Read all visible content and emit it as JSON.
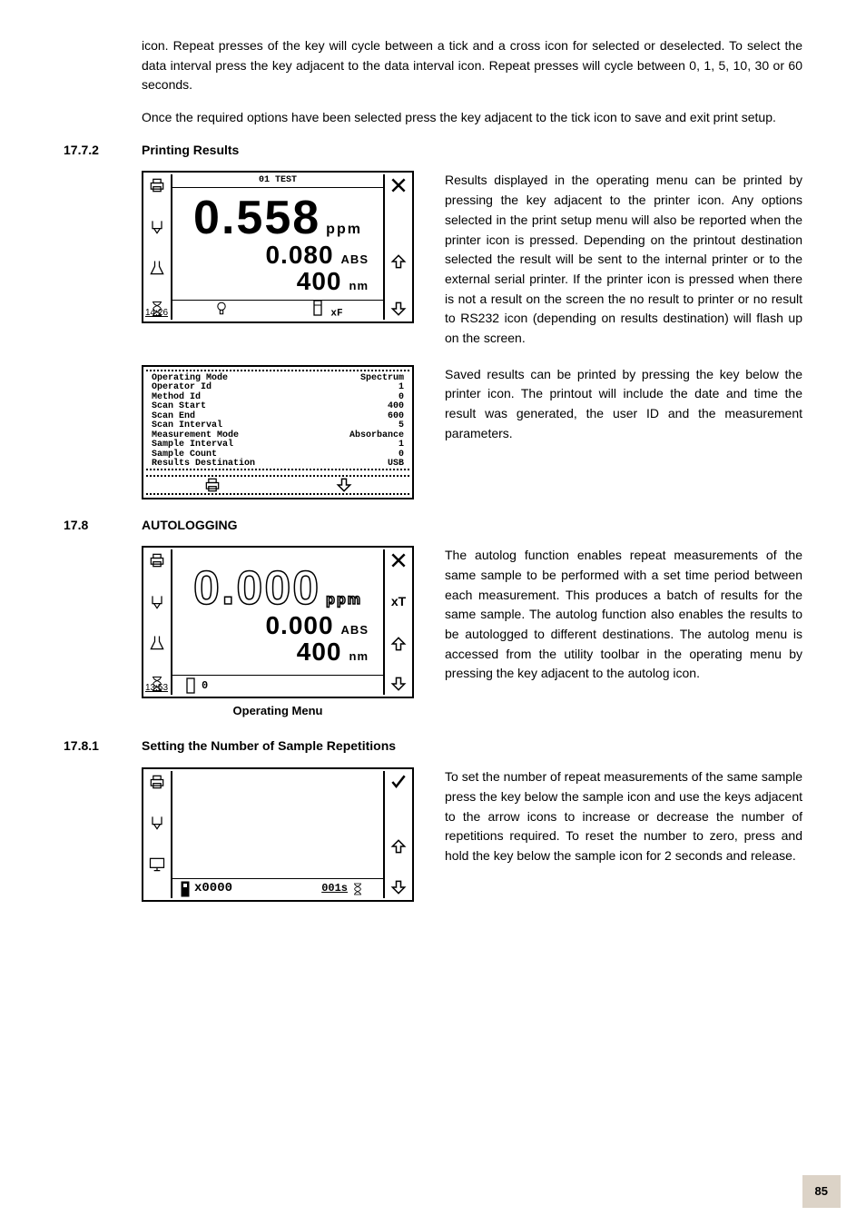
{
  "intro": {
    "p1": "icon. Repeat presses of the key will cycle between a tick and a cross icon for selected or deselected. To select the data interval press the key adjacent to the data interval icon. Repeat presses will cycle between 0, 1, 5, 10, 30 or 60 seconds.",
    "p2": "Once the required options have been selected press the key adjacent to the tick icon to save and exit print setup."
  },
  "s1772": {
    "num": "17.7.2",
    "title": "Printing Results",
    "text": "Results displayed in the operating menu can be printed by pressing the key adjacent to the printer icon. Any options selected in the print setup menu will also be reported when the printer icon is pressed. Depending on the printout destination selected the result will be sent to the internal printer or to the external serial printer. If the printer icon is pressed when there is not a result on the screen the no result to printer or no result to RS232 icon (depending on results destination) will flash up on the screen.",
    "text2": "Saved results can be printed by pressing the key below the printer icon. The printout will include the date and time the result was generated, the user ID and the measurement parameters.",
    "lcd": {
      "title": "01 TEST",
      "main_value": "0.558",
      "main_unit": "ppm",
      "abs_value": "0.080",
      "abs_unit": "ABS",
      "wl_value": "400",
      "wl_unit": "nm",
      "clock": "14:26",
      "footer_left": "",
      "footer_right": "xF"
    }
  },
  "params": {
    "rows": [
      [
        "Operating Mode",
        "Spectrum"
      ],
      [
        "Operator Id",
        "1"
      ],
      [
        "Method Id",
        "0"
      ],
      [
        "Scan Start",
        "400"
      ],
      [
        "Scan End",
        "600"
      ],
      [
        "Scan Interval",
        "5"
      ],
      [
        "Measurement Mode",
        "Absorbance"
      ],
      [
        "Sample Interval",
        "1"
      ],
      [
        "Sample Count",
        "0"
      ],
      [
        "Results Destination",
        "USB"
      ]
    ]
  },
  "s178": {
    "num": "17.8",
    "title": "AUTOLOGGING",
    "text": "The autolog function enables repeat measurements of the same sample to be performed with a set time period between each measurement. This produces a batch of results for the same sample. The autolog function also enables the results to be autologged to different destinations. The autolog menu is accessed from the utility toolbar in the operating menu by pressing the key adjacent to the autolog icon.",
    "caption": "Operating Menu",
    "lcd": {
      "main_value": "0.000",
      "main_unit": "ppm",
      "abs_value": "0.000",
      "abs_unit": "ABS",
      "wl_value": "400",
      "wl_unit": "nm",
      "clock": "13:53",
      "footer_val": "0",
      "right_badge": "xT"
    }
  },
  "s1781": {
    "num": "17.8.1",
    "title": "Setting the Number of Sample Repetitions",
    "text": "To set the number of repeat measurements of the same sample press the key below the sample icon and use the keys adjacent to the arrow icons to increase or decrease the number of repetitions required. To reset the number to zero, press and hold the key below the sample icon for 2 seconds and release.",
    "lcd": {
      "count_value": "x0000",
      "timer_value": "001s"
    }
  },
  "page_number": "85"
}
